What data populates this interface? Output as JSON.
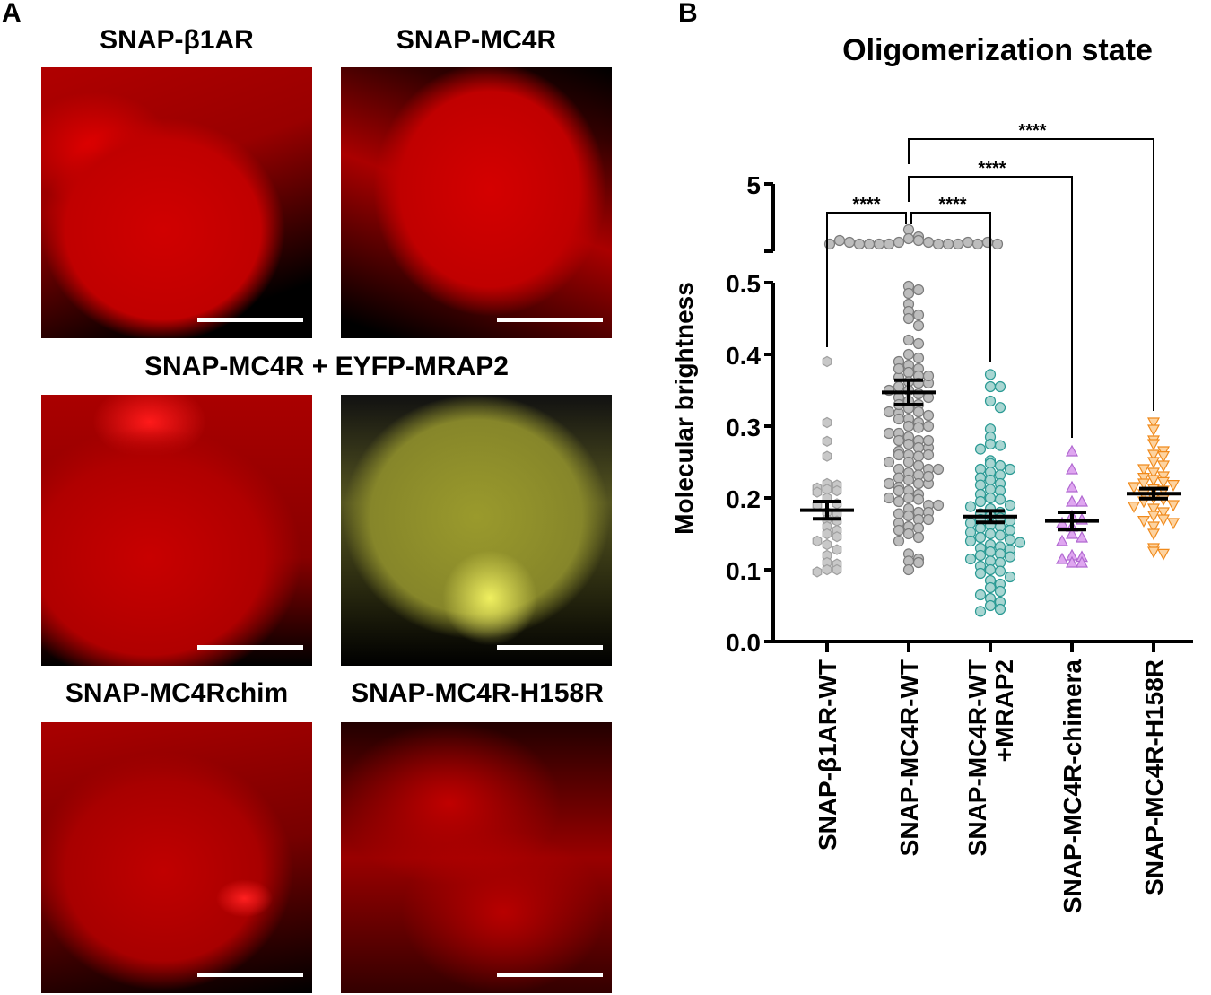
{
  "panel_a": {
    "label": "A",
    "titles": [
      "SNAP-β1AR",
      "SNAP-MC4R",
      "SNAP-MC4R + EYFP-MRAP2",
      "SNAP-MC4Rchim",
      "SNAP-MC4R-H158R"
    ]
  },
  "panel_b": {
    "label": "B"
  },
  "chart_data": {
    "type": "scatter",
    "title": "Oligomerization state",
    "ylabel": "Molecular brightness",
    "xlabel": "",
    "ylim": [
      0,
      5
    ],
    "axis_break": [
      0.5,
      5
    ],
    "yticks": [
      "0.0",
      "0.1",
      "0.2",
      "0.3",
      "0.4",
      "0.5",
      "5"
    ],
    "categories": [
      "SNAP-β1AR-WT",
      "SNAP-MC4R-WT",
      "SNAP-MC4R-WT\n+MRAP2",
      "SNAP-MC4R-chimera",
      "SNAP-MC4R-H158R"
    ],
    "series": [
      {
        "name": "SNAP-β1AR-WT",
        "color": "#c8c8c8",
        "edge": "#a0a0a0",
        "marker": "hexagon",
        "mean": 0.183,
        "sem": 0.012,
        "values": [
          0.39,
          0.305,
          0.279,
          0.258,
          0.22,
          0.212,
          0.218,
          0.214,
          0.21,
          0.208,
          0.2,
          0.192,
          0.19,
          0.18,
          0.178,
          0.17,
          0.168,
          0.16,
          0.155,
          0.15,
          0.146,
          0.14,
          0.135,
          0.128,
          0.12,
          0.11,
          0.108,
          0.1,
          0.1,
          0.097
        ]
      },
      {
        "name": "SNAP-MC4R-WT",
        "color": "#bdbdbd",
        "edge": "#7a7a7a",
        "marker": "circle",
        "mean": 0.347,
        "sem": 0.017,
        "values": [
          0.7,
          0.66,
          0.65,
          0.64,
          0.63,
          0.63,
          0.62,
          0.62,
          0.62,
          0.62,
          0.62,
          0.62,
          0.62,
          0.63,
          0.63,
          0.62,
          0.64,
          0.63,
          0.62,
          0.62,
          0.495,
          0.49,
          0.485,
          0.47,
          0.46,
          0.455,
          0.45,
          0.44,
          0.42,
          0.415,
          0.4,
          0.395,
          0.39,
          0.385,
          0.38,
          0.375,
          0.37,
          0.368,
          0.362,
          0.36,
          0.355,
          0.35,
          0.345,
          0.34,
          0.335,
          0.33,
          0.325,
          0.32,
          0.318,
          0.315,
          0.31,
          0.305,
          0.3,
          0.298,
          0.29,
          0.285,
          0.28,
          0.275,
          0.27,
          0.265,
          0.26,
          0.258,
          0.25,
          0.245,
          0.24,
          0.235,
          0.232,
          0.228,
          0.225,
          0.22,
          0.215,
          0.21,
          0.205,
          0.2,
          0.198,
          0.195,
          0.19,
          0.185,
          0.18,
          0.178,
          0.175,
          0.17,
          0.165,
          0.16,
          0.158,
          0.155,
          0.15,
          0.145,
          0.14,
          0.122,
          0.115,
          0.112,
          0.11,
          0.1,
          0.36,
          0.34,
          0.32,
          0.3,
          0.28,
          0.26,
          0.24,
          0.22,
          0.2,
          0.18,
          0.27,
          0.25,
          0.23,
          0.21,
          0.19,
          0.17,
          0.29,
          0.31,
          0.33,
          0.35,
          0.37,
          0.38,
          0.24,
          0.22,
          0.26,
          0.28
        ]
      },
      {
        "name": "SNAP-MC4R-WT +MRAP2",
        "color": "#a9d6d2",
        "edge": "#2a9a94",
        "marker": "circle",
        "mean": 0.174,
        "sem": 0.008,
        "values": [
          0.372,
          0.355,
          0.355,
          0.335,
          0.326,
          0.296,
          0.285,
          0.275,
          0.273,
          0.268,
          0.252,
          0.248,
          0.245,
          0.24,
          0.24,
          0.236,
          0.232,
          0.228,
          0.225,
          0.22,
          0.218,
          0.212,
          0.21,
          0.205,
          0.2,
          0.198,
          0.195,
          0.19,
          0.188,
          0.185,
          0.18,
          0.178,
          0.175,
          0.172,
          0.17,
          0.168,
          0.165,
          0.162,
          0.16,
          0.158,
          0.155,
          0.152,
          0.15,
          0.148,
          0.145,
          0.142,
          0.14,
          0.138,
          0.135,
          0.132,
          0.13,
          0.128,
          0.125,
          0.122,
          0.12,
          0.118,
          0.115,
          0.112,
          0.11,
          0.105,
          0.1,
          0.098,
          0.095,
          0.09,
          0.085,
          0.08,
          0.075,
          0.07,
          0.065,
          0.06,
          0.055,
          0.05,
          0.045,
          0.042
        ]
      },
      {
        "name": "SNAP-MC4R-chimera",
        "color": "#dfa6f0",
        "edge": "#b068d0",
        "marker": "triangle-up",
        "mean": 0.168,
        "sem": 0.012,
        "values": [
          0.265,
          0.24,
          0.215,
          0.195,
          0.195,
          0.175,
          0.17,
          0.165,
          0.16,
          0.15,
          0.145,
          0.14,
          0.12,
          0.118,
          0.115,
          0.11,
          0.11
        ]
      },
      {
        "name": "SNAP-MC4R-H158R",
        "color": "#fdd3a0",
        "edge": "#f08a1c",
        "marker": "triangle-down",
        "mean": 0.206,
        "sem": 0.007,
        "values": [
          0.305,
          0.295,
          0.28,
          0.275,
          0.265,
          0.26,
          0.258,
          0.25,
          0.245,
          0.24,
          0.235,
          0.23,
          0.228,
          0.225,
          0.222,
          0.22,
          0.218,
          0.215,
          0.212,
          0.21,
          0.205,
          0.2,
          0.198,
          0.195,
          0.19,
          0.188,
          0.185,
          0.18,
          0.175,
          0.17,
          0.168,
          0.165,
          0.16,
          0.15,
          0.13,
          0.125,
          0.122
        ]
      }
    ],
    "significance": [
      {
        "pair": [
          0,
          1
        ],
        "label": "****"
      },
      {
        "pair": [
          1,
          2
        ],
        "label": "****"
      },
      {
        "pair": [
          1,
          3
        ],
        "label": "****"
      },
      {
        "pair": [
          1,
          4
        ],
        "label": "****"
      }
    ]
  }
}
